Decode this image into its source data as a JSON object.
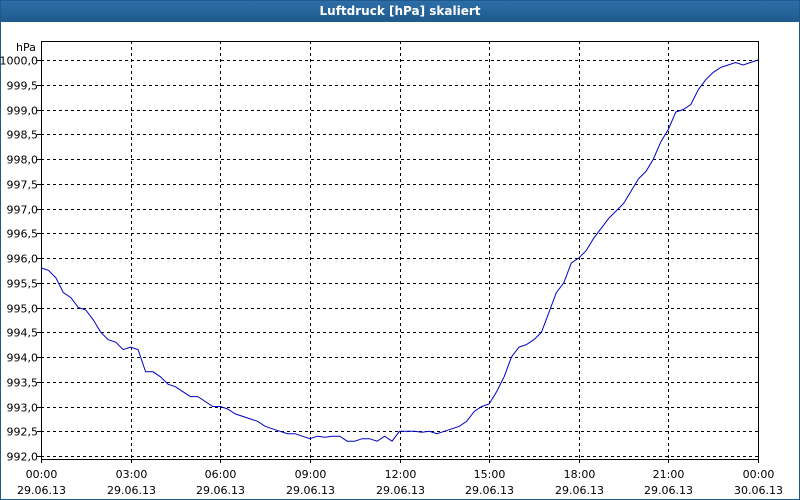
{
  "window": {
    "title": "Luftdruck [hPa] skaliert"
  },
  "chart_data": {
    "type": "line",
    "title": "Luftdruck [hPa] skaliert",
    "ylabel": "hPa",
    "ylim": [
      992.0,
      1000.0
    ],
    "y_ticks": [
      {
        "value": 1000.0,
        "label": "1000,0"
      },
      {
        "value": 999.5,
        "label": "999,5"
      },
      {
        "value": 999.0,
        "label": "999,0"
      },
      {
        "value": 998.5,
        "label": "998,5"
      },
      {
        "value": 998.0,
        "label": "998,0"
      },
      {
        "value": 997.5,
        "label": "997,5"
      },
      {
        "value": 997.0,
        "label": "997,0"
      },
      {
        "value": 996.5,
        "label": "996,5"
      },
      {
        "value": 996.0,
        "label": "996,0"
      },
      {
        "value": 995.5,
        "label": "995,5"
      },
      {
        "value": 995.0,
        "label": "995,0"
      },
      {
        "value": 994.5,
        "label": "994,5"
      },
      {
        "value": 994.0,
        "label": "994,0"
      },
      {
        "value": 993.5,
        "label": "993,5"
      },
      {
        "value": 993.0,
        "label": "993,0"
      },
      {
        "value": 992.5,
        "label": "992,5"
      },
      {
        "value": 992.0,
        "label": "992,0"
      }
    ],
    "xlim": [
      "29.06.13 00:00",
      "30.06.13 00:00"
    ],
    "x_ticks": [
      {
        "time": "00:00",
        "date": "29.06.13"
      },
      {
        "time": "03:00",
        "date": "29.06.13"
      },
      {
        "time": "06:00",
        "date": "29.06.13"
      },
      {
        "time": "09:00",
        "date": "29.06.13"
      },
      {
        "time": "12:00",
        "date": "29.06.13"
      },
      {
        "time": "15:00",
        "date": "29.06.13"
      },
      {
        "time": "18:00",
        "date": "29.06.13"
      },
      {
        "time": "21:00",
        "date": "29.06.13"
      },
      {
        "time": "00:00",
        "date": "30.06.13"
      }
    ],
    "grid": true,
    "series": [
      {
        "color": "#0000c8",
        "points": [
          [
            "29.06.13 00:00",
            995.8
          ],
          [
            "29.06.13 00:15",
            995.75
          ],
          [
            "29.06.13 00:30",
            995.6
          ],
          [
            "29.06.13 00:45",
            995.3
          ],
          [
            "29.06.13 01:00",
            995.2
          ],
          [
            "29.06.13 01:15",
            995.0
          ],
          [
            "29.06.13 01:30",
            994.95
          ],
          [
            "29.06.13 01:45",
            994.75
          ],
          [
            "29.06.13 02:00",
            994.5
          ],
          [
            "29.06.13 02:15",
            994.35
          ],
          [
            "29.06.13 02:30",
            994.3
          ],
          [
            "29.06.13 02:45",
            994.15
          ],
          [
            "29.06.13 03:00",
            994.2
          ],
          [
            "29.06.13 03:15",
            994.15
          ],
          [
            "29.06.13 03:30",
            993.7
          ],
          [
            "29.06.13 03:45",
            993.7
          ],
          [
            "29.06.13 04:00",
            993.6
          ],
          [
            "29.06.13 04:15",
            993.45
          ],
          [
            "29.06.13 04:30",
            993.4
          ],
          [
            "29.06.13 04:45",
            993.3
          ],
          [
            "29.06.13 05:00",
            993.2
          ],
          [
            "29.06.13 05:15",
            993.2
          ],
          [
            "29.06.13 05:30",
            993.1
          ],
          [
            "29.06.13 05:45",
            993.0
          ],
          [
            "29.06.13 06:00",
            993.0
          ],
          [
            "29.06.13 06:15",
            992.95
          ],
          [
            "29.06.13 06:30",
            992.85
          ],
          [
            "29.06.13 06:45",
            992.8
          ],
          [
            "29.06.13 07:00",
            992.75
          ],
          [
            "29.06.13 07:15",
            992.7
          ],
          [
            "29.06.13 07:30",
            992.6
          ],
          [
            "29.06.13 07:45",
            992.55
          ],
          [
            "29.06.13 08:00",
            992.5
          ],
          [
            "29.06.13 08:15",
            992.45
          ],
          [
            "29.06.13 08:30",
            992.45
          ],
          [
            "29.06.13 08:45",
            992.4
          ],
          [
            "29.06.13 09:00",
            992.35
          ],
          [
            "29.06.13 09:15",
            992.4
          ],
          [
            "29.06.13 09:30",
            992.38
          ],
          [
            "29.06.13 09:45",
            992.4
          ],
          [
            "29.06.13 10:00",
            992.4
          ],
          [
            "29.06.13 10:15",
            992.3
          ],
          [
            "29.06.13 10:30",
            992.3
          ],
          [
            "29.06.13 10:45",
            992.35
          ],
          [
            "29.06.13 11:00",
            992.35
          ],
          [
            "29.06.13 11:15",
            992.3
          ],
          [
            "29.06.13 11:30",
            992.4
          ],
          [
            "29.06.13 11:45",
            992.3
          ],
          [
            "29.06.13 12:00",
            992.5
          ],
          [
            "29.06.13 12:15",
            992.5
          ],
          [
            "29.06.13 12:30",
            992.5
          ],
          [
            "29.06.13 12:45",
            992.48
          ],
          [
            "29.06.13 13:00",
            992.5
          ],
          [
            "29.06.13 13:15",
            992.45
          ],
          [
            "29.06.13 13:30",
            992.5
          ],
          [
            "29.06.13 13:45",
            992.55
          ],
          [
            "29.06.13 14:00",
            992.6
          ],
          [
            "29.06.13 14:15",
            992.7
          ],
          [
            "29.06.13 14:30",
            992.9
          ],
          [
            "29.06.13 14:45",
            993.0
          ],
          [
            "29.06.13 15:00",
            993.05
          ],
          [
            "29.06.13 15:15",
            993.3
          ],
          [
            "29.06.13 15:30",
            993.6
          ],
          [
            "29.06.13 15:45",
            994.0
          ],
          [
            "29.06.13 16:00",
            994.2
          ],
          [
            "29.06.13 16:15",
            994.25
          ],
          [
            "29.06.13 16:30",
            994.35
          ],
          [
            "29.06.13 16:45",
            994.5
          ],
          [
            "29.06.13 17:00",
            994.9
          ],
          [
            "29.06.13 17:15",
            995.3
          ],
          [
            "29.06.13 17:30",
            995.5
          ],
          [
            "29.06.13 17:45",
            995.9
          ],
          [
            "29.06.13 18:00",
            996.0
          ],
          [
            "29.06.13 18:15",
            996.15
          ],
          [
            "29.06.13 18:30",
            996.4
          ],
          [
            "29.06.13 18:45",
            996.6
          ],
          [
            "29.06.13 19:00",
            996.8
          ],
          [
            "29.06.13 19:15",
            996.95
          ],
          [
            "29.06.13 19:30",
            997.1
          ],
          [
            "29.06.13 19:45",
            997.35
          ],
          [
            "29.06.13 20:00",
            997.6
          ],
          [
            "29.06.13 20:15",
            997.75
          ],
          [
            "29.06.13 20:30",
            998.0
          ],
          [
            "29.06.13 20:45",
            998.35
          ],
          [
            "29.06.13 21:00",
            998.6
          ],
          [
            "29.06.13 21:15",
            998.95
          ],
          [
            "29.06.13 21:30",
            999.0
          ],
          [
            "29.06.13 21:45",
            999.1
          ],
          [
            "29.06.13 22:00",
            999.4
          ],
          [
            "29.06.13 22:15",
            999.6
          ],
          [
            "29.06.13 22:30",
            999.75
          ],
          [
            "29.06.13 22:45",
            999.85
          ],
          [
            "29.06.13 23:00",
            999.9
          ],
          [
            "29.06.13 23:15",
            999.95
          ],
          [
            "29.06.13 23:30",
            999.9
          ],
          [
            "29.06.13 23:45",
            999.95
          ],
          [
            "30.06.13 00:00",
            1000.0
          ]
        ]
      }
    ]
  }
}
